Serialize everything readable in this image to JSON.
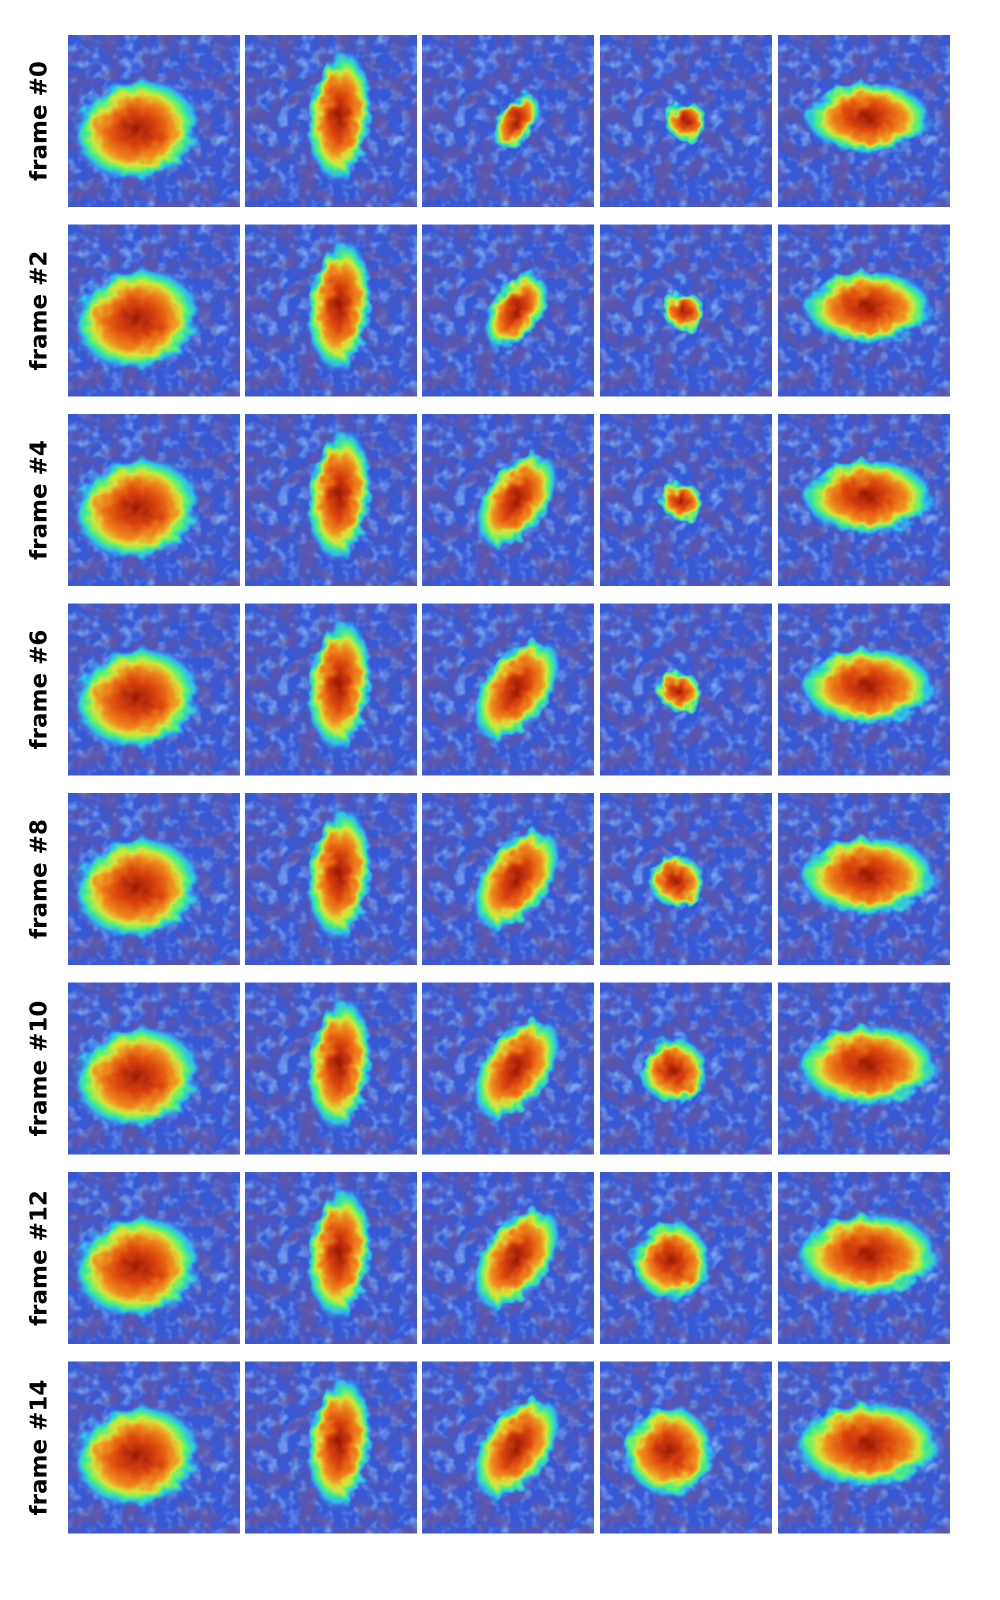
{
  "row_labels": [
    "frame #0",
    "frame #2",
    "frame #4",
    "frame #6",
    "frame #8",
    "frame #10",
    "frame #12",
    "frame #14"
  ]
}
